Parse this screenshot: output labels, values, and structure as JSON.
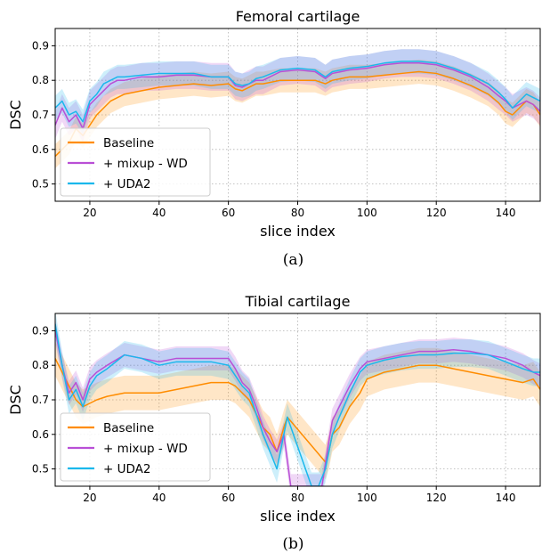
{
  "chart_data": [
    {
      "type": "line",
      "title": "Femoral cartilage",
      "xlabel": "slice index",
      "ylabel": "DSC",
      "caption": "(a)",
      "xlim": [
        10,
        150
      ],
      "ylim": [
        0.45,
        0.95
      ],
      "xticks": [
        20,
        40,
        60,
        80,
        100,
        120,
        140
      ],
      "yticks": [
        0.5,
        0.6,
        0.7,
        0.8,
        0.9
      ],
      "grid": true,
      "legend_position": "lower-left",
      "series": [
        {
          "name": "Baseline",
          "color": "#ff8c00",
          "x": [
            10,
            12,
            14,
            16,
            18,
            20,
            22,
            24,
            26,
            28,
            30,
            35,
            40,
            45,
            50,
            55,
            60,
            62,
            64,
            66,
            68,
            70,
            75,
            80,
            85,
            88,
            90,
            95,
            100,
            105,
            110,
            115,
            120,
            125,
            130,
            135,
            138,
            140,
            142,
            144,
            146,
            148,
            150
          ],
          "y": [
            0.58,
            0.6,
            0.62,
            0.66,
            0.64,
            0.67,
            0.7,
            0.72,
            0.74,
            0.75,
            0.76,
            0.77,
            0.78,
            0.785,
            0.79,
            0.785,
            0.79,
            0.775,
            0.77,
            0.78,
            0.79,
            0.79,
            0.8,
            0.8,
            0.8,
            0.79,
            0.8,
            0.81,
            0.81,
            0.815,
            0.82,
            0.825,
            0.82,
            0.805,
            0.785,
            0.76,
            0.735,
            0.71,
            0.7,
            0.72,
            0.74,
            0.73,
            0.7
          ],
          "band": 0.035
        },
        {
          "name": "+ mixup - WD",
          "color": "#b94fd6",
          "x": [
            10,
            12,
            14,
            16,
            18,
            20,
            22,
            24,
            26,
            28,
            30,
            35,
            40,
            45,
            50,
            55,
            60,
            62,
            64,
            66,
            68,
            70,
            75,
            80,
            85,
            88,
            90,
            95,
            100,
            105,
            110,
            115,
            120,
            125,
            130,
            135,
            138,
            140,
            142,
            144,
            146,
            148,
            150
          ],
          "y": [
            0.67,
            0.72,
            0.68,
            0.7,
            0.66,
            0.73,
            0.75,
            0.77,
            0.79,
            0.8,
            0.8,
            0.81,
            0.81,
            0.815,
            0.815,
            0.81,
            0.81,
            0.785,
            0.78,
            0.79,
            0.8,
            0.8,
            0.825,
            0.83,
            0.825,
            0.805,
            0.82,
            0.83,
            0.835,
            0.845,
            0.85,
            0.85,
            0.845,
            0.83,
            0.81,
            0.78,
            0.755,
            0.74,
            0.72,
            0.73,
            0.74,
            0.73,
            0.71
          ],
          "band": 0.04
        },
        {
          "name": "+ UDA2",
          "color": "#1ab8ec",
          "x": [
            10,
            12,
            14,
            16,
            18,
            20,
            22,
            24,
            26,
            28,
            30,
            35,
            40,
            45,
            50,
            55,
            60,
            62,
            64,
            66,
            68,
            70,
            75,
            80,
            85,
            88,
            90,
            95,
            100,
            105,
            110,
            115,
            120,
            125,
            130,
            135,
            138,
            140,
            142,
            144,
            146,
            148,
            150
          ],
          "y": [
            0.72,
            0.74,
            0.7,
            0.71,
            0.68,
            0.74,
            0.76,
            0.79,
            0.8,
            0.81,
            0.81,
            0.815,
            0.82,
            0.82,
            0.82,
            0.81,
            0.81,
            0.79,
            0.785,
            0.79,
            0.805,
            0.81,
            0.83,
            0.835,
            0.83,
            0.81,
            0.825,
            0.835,
            0.84,
            0.85,
            0.855,
            0.855,
            0.85,
            0.835,
            0.815,
            0.79,
            0.765,
            0.745,
            0.72,
            0.74,
            0.76,
            0.75,
            0.74
          ],
          "band": 0.035
        }
      ]
    },
    {
      "type": "line",
      "title": "Tibial cartilage",
      "xlabel": "slice index",
      "ylabel": "DSC",
      "caption": "(b)",
      "xlim": [
        10,
        150
      ],
      "ylim": [
        0.45,
        0.95
      ],
      "xticks": [
        20,
        40,
        60,
        80,
        100,
        120,
        140
      ],
      "yticks": [
        0.5,
        0.6,
        0.7,
        0.8,
        0.9
      ],
      "grid": true,
      "legend_position": "lower-left",
      "series": [
        {
          "name": "Baseline",
          "color": "#ff8c00",
          "x": [
            10,
            12,
            14,
            16,
            18,
            20,
            22,
            25,
            30,
            35,
            40,
            45,
            50,
            55,
            60,
            62,
            64,
            66,
            68,
            70,
            72,
            74,
            76,
            77,
            88,
            89,
            90,
            92,
            95,
            98,
            100,
            105,
            110,
            115,
            120,
            125,
            130,
            135,
            140,
            145,
            148,
            150
          ],
          "y": [
            0.82,
            0.78,
            0.74,
            0.7,
            0.68,
            0.69,
            0.7,
            0.71,
            0.72,
            0.72,
            0.72,
            0.73,
            0.74,
            0.75,
            0.75,
            0.74,
            0.72,
            0.7,
            0.66,
            0.62,
            0.6,
            0.55,
            0.62,
            0.65,
            0.52,
            0.55,
            0.6,
            0.62,
            0.68,
            0.72,
            0.76,
            0.78,
            0.79,
            0.8,
            0.8,
            0.79,
            0.78,
            0.77,
            0.76,
            0.75,
            0.76,
            0.73
          ],
          "band": 0.05
        },
        {
          "name": "+ mixup - WD",
          "color": "#b94fd6",
          "x": [
            10,
            12,
            14,
            16,
            18,
            20,
            22,
            25,
            30,
            35,
            40,
            45,
            50,
            55,
            60,
            62,
            64,
            66,
            68,
            70,
            72,
            74,
            76,
            78,
            87,
            89,
            90,
            92,
            95,
            98,
            100,
            105,
            110,
            115,
            120,
            125,
            130,
            135,
            140,
            145,
            148,
            150
          ],
          "y": [
            0.9,
            0.8,
            0.72,
            0.75,
            0.7,
            0.76,
            0.78,
            0.8,
            0.83,
            0.82,
            0.81,
            0.82,
            0.82,
            0.82,
            0.82,
            0.79,
            0.75,
            0.73,
            0.68,
            0.62,
            0.58,
            0.55,
            0.6,
            0.45,
            0.45,
            0.58,
            0.64,
            0.68,
            0.74,
            0.79,
            0.81,
            0.82,
            0.83,
            0.84,
            0.84,
            0.845,
            0.84,
            0.83,
            0.82,
            0.8,
            0.78,
            0.77
          ],
          "band": 0.035
        },
        {
          "name": "+ UDA2",
          "color": "#1ab8ec",
          "x": [
            10,
            12,
            14,
            16,
            18,
            20,
            22,
            25,
            30,
            35,
            40,
            45,
            50,
            55,
            60,
            62,
            64,
            66,
            68,
            70,
            72,
            74,
            76,
            77,
            84,
            86,
            88,
            90,
            92,
            95,
            98,
            100,
            105,
            110,
            115,
            120,
            125,
            130,
            135,
            140,
            145,
            148,
            150
          ],
          "y": [
            0.92,
            0.8,
            0.7,
            0.73,
            0.68,
            0.74,
            0.77,
            0.79,
            0.83,
            0.82,
            0.8,
            0.81,
            0.81,
            0.81,
            0.8,
            0.77,
            0.74,
            0.72,
            0.66,
            0.6,
            0.55,
            0.5,
            0.6,
            0.65,
            0.45,
            0.45,
            0.5,
            0.6,
            0.65,
            0.72,
            0.78,
            0.8,
            0.815,
            0.825,
            0.83,
            0.83,
            0.835,
            0.835,
            0.83,
            0.81,
            0.79,
            0.78,
            0.78
          ],
          "band": 0.04
        }
      ]
    }
  ]
}
